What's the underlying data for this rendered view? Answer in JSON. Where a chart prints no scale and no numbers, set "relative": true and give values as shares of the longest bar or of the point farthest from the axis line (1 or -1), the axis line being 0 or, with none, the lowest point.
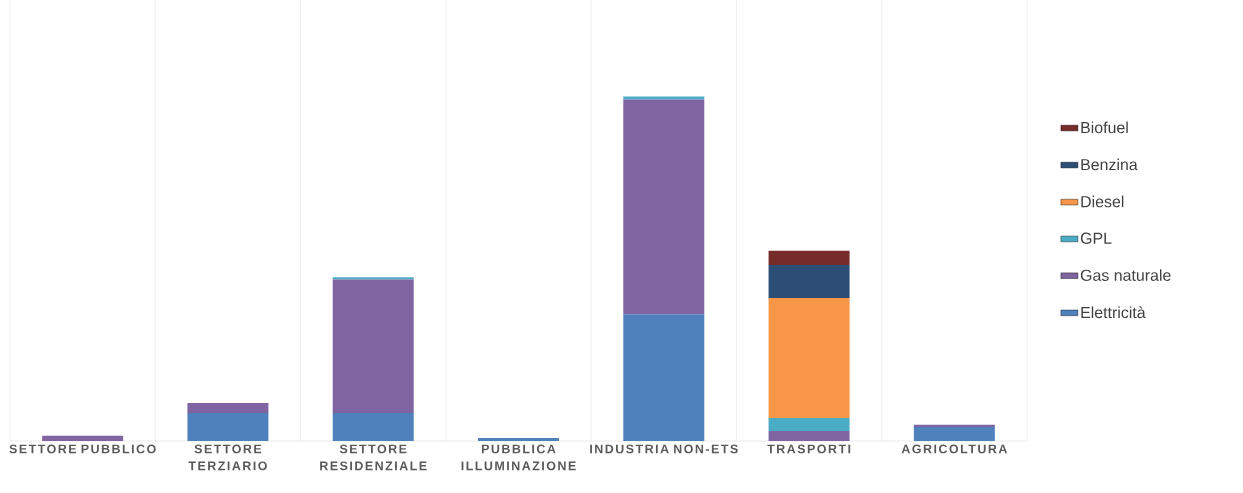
{
  "chart_data": {
    "type": "bar",
    "stacked": true,
    "relative": true,
    "grid": "x",
    "legend": "right",
    "categories": [
      "SETTORE PUBBLICO",
      "SETTORE TERZIARIO",
      "SETTORE RESIDENZIALE",
      "PUBBLICA ILLUMINAZIONE",
      "INDUSTRIA NON-ETS",
      "TRASPORTI",
      "AGRICOLTURA"
    ],
    "series": [
      {
        "name": "Elettricità",
        "color": "#4f81bd",
        "values": [
          null,
          0.081,
          0.081,
          0.009,
          0.368,
          null,
          0.041
        ]
      },
      {
        "name": "Gas naturale",
        "color": "#8064a2",
        "values": [
          0.015,
          0.029,
          0.388,
          null,
          0.623,
          0.029,
          0.006
        ]
      },
      {
        "name": "GPL",
        "color": "#4bacc6",
        "values": [
          null,
          null,
          0.006,
          null,
          0.009,
          0.038,
          null
        ]
      },
      {
        "name": "Diesel",
        "color": "#f79646",
        "values": [
          null,
          null,
          null,
          null,
          null,
          0.348,
          null
        ]
      },
      {
        "name": "Benzina",
        "color": "#2c4d75",
        "values": [
          null,
          null,
          null,
          null,
          null,
          0.096,
          null
        ]
      },
      {
        "name": "Biofuel",
        "color": "#772c2a",
        "values": [
          null,
          null,
          null,
          null,
          null,
          0.041,
          null
        ]
      }
    ]
  }
}
